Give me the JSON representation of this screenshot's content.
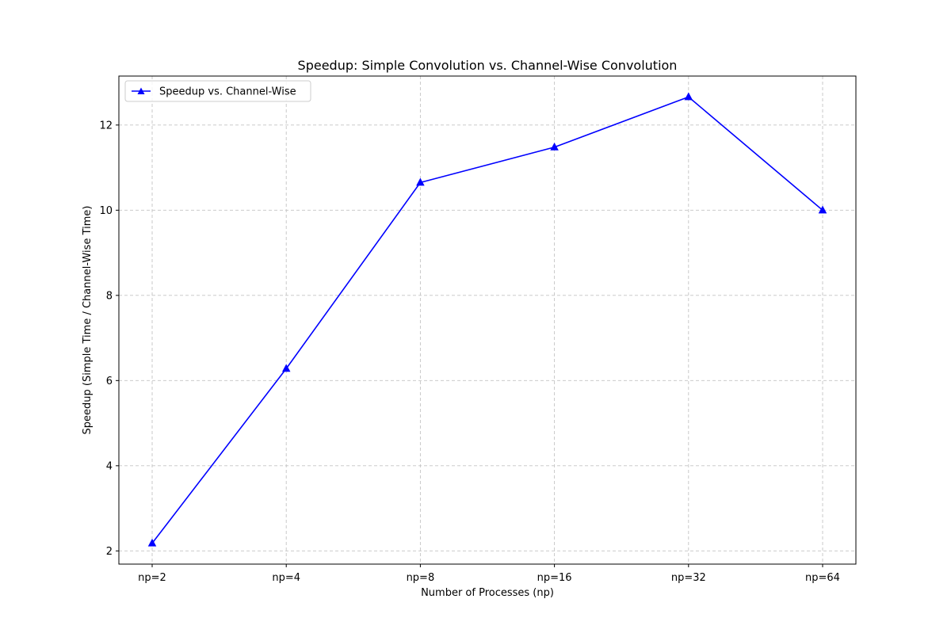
{
  "chart_data": {
    "type": "line",
    "title": "Speedup: Simple Convolution vs. Channel-Wise Convolution",
    "xlabel": "Number of Processes (np)",
    "ylabel": "Speedup (Simple Time / Channel-Wise Time)",
    "categories": [
      "np=2",
      "np=4",
      "np=8",
      "np=16",
      "np=32",
      "np=64"
    ],
    "series": [
      {
        "name": "Speedup vs. Channel-Wise",
        "values": [
          2.18,
          6.28,
          10.65,
          11.48,
          12.66,
          10.0
        ],
        "color": "#0000ff",
        "marker": "triangle-up"
      }
    ],
    "ylim": [
      1.69,
      13.15
    ],
    "yticks": [
      2,
      4,
      6,
      8,
      10,
      12
    ],
    "grid": true,
    "legend_position": "top-left"
  }
}
